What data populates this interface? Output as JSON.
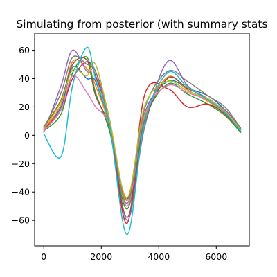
{
  "chart_data": {
    "type": "line",
    "title": "Simulating from posterior (with summary stats",
    "xlabel": "",
    "ylabel": "",
    "xlim": [
      -320,
      7150
    ],
    "ylim": [
      -78,
      72
    ],
    "xticks": [
      0,
      2000,
      4000,
      6000
    ],
    "xtick_labels": [
      "0",
      "2000",
      "4000",
      "6000"
    ],
    "yticks": [
      -60,
      -40,
      -20,
      0,
      20,
      40,
      60
    ],
    "ytick_labels": [
      "−60",
      "−40",
      "−20",
      "0",
      "20",
      "40",
      "60"
    ],
    "grid": false,
    "legend": "none",
    "colors": [
      "#1f77b4",
      "#ff7f0e",
      "#2ca02c",
      "#d62728",
      "#9467bd",
      "#8c564b",
      "#e377c2",
      "#7f7f7f",
      "#bcbd22",
      "#17becf"
    ],
    "x": [
      0,
      600,
      1000,
      1500,
      1800,
      2300,
      2900,
      3500,
      4300,
      5000,
      5700,
      6300,
      6850
    ],
    "series": [
      {
        "values": [
          5,
          20,
          48,
          40,
          38,
          5,
          -45,
          15,
          38,
          33,
          28,
          18,
          4
        ]
      },
      {
        "values": [
          4,
          22,
          52,
          47,
          35,
          6,
          -46,
          12,
          41,
          32,
          24,
          16,
          3
        ]
      },
      {
        "values": [
          3,
          15,
          44,
          55,
          30,
          2,
          -52,
          10,
          36,
          29,
          22,
          14,
          2
        ]
      },
      {
        "values": [
          4,
          18,
          40,
          52,
          42,
          8,
          -62,
          28,
          33,
          20,
          22,
          15,
          3
        ]
      },
      {
        "values": [
          2,
          35,
          60,
          45,
          45,
          10,
          -60,
          5,
          52,
          35,
          25,
          18,
          5
        ]
      },
      {
        "values": [
          6,
          25,
          50,
          53,
          28,
          4,
          -58,
          8,
          40,
          33,
          26,
          16,
          4
        ]
      },
      {
        "values": [
          3,
          18,
          42,
          30,
          20,
          6,
          -50,
          14,
          35,
          30,
          25,
          17,
          4
        ]
      },
      {
        "values": [
          5,
          30,
          55,
          50,
          45,
          8,
          -48,
          18,
          45,
          38,
          28,
          20,
          5
        ]
      },
      {
        "values": [
          4,
          24,
          46,
          42,
          50,
          10,
          -44,
          20,
          38,
          31,
          26,
          17,
          4
        ]
      },
      {
        "values": [
          1,
          -15,
          35,
          62,
          40,
          5,
          -70,
          8,
          44,
          34,
          25,
          16,
          3
        ]
      }
    ]
  }
}
